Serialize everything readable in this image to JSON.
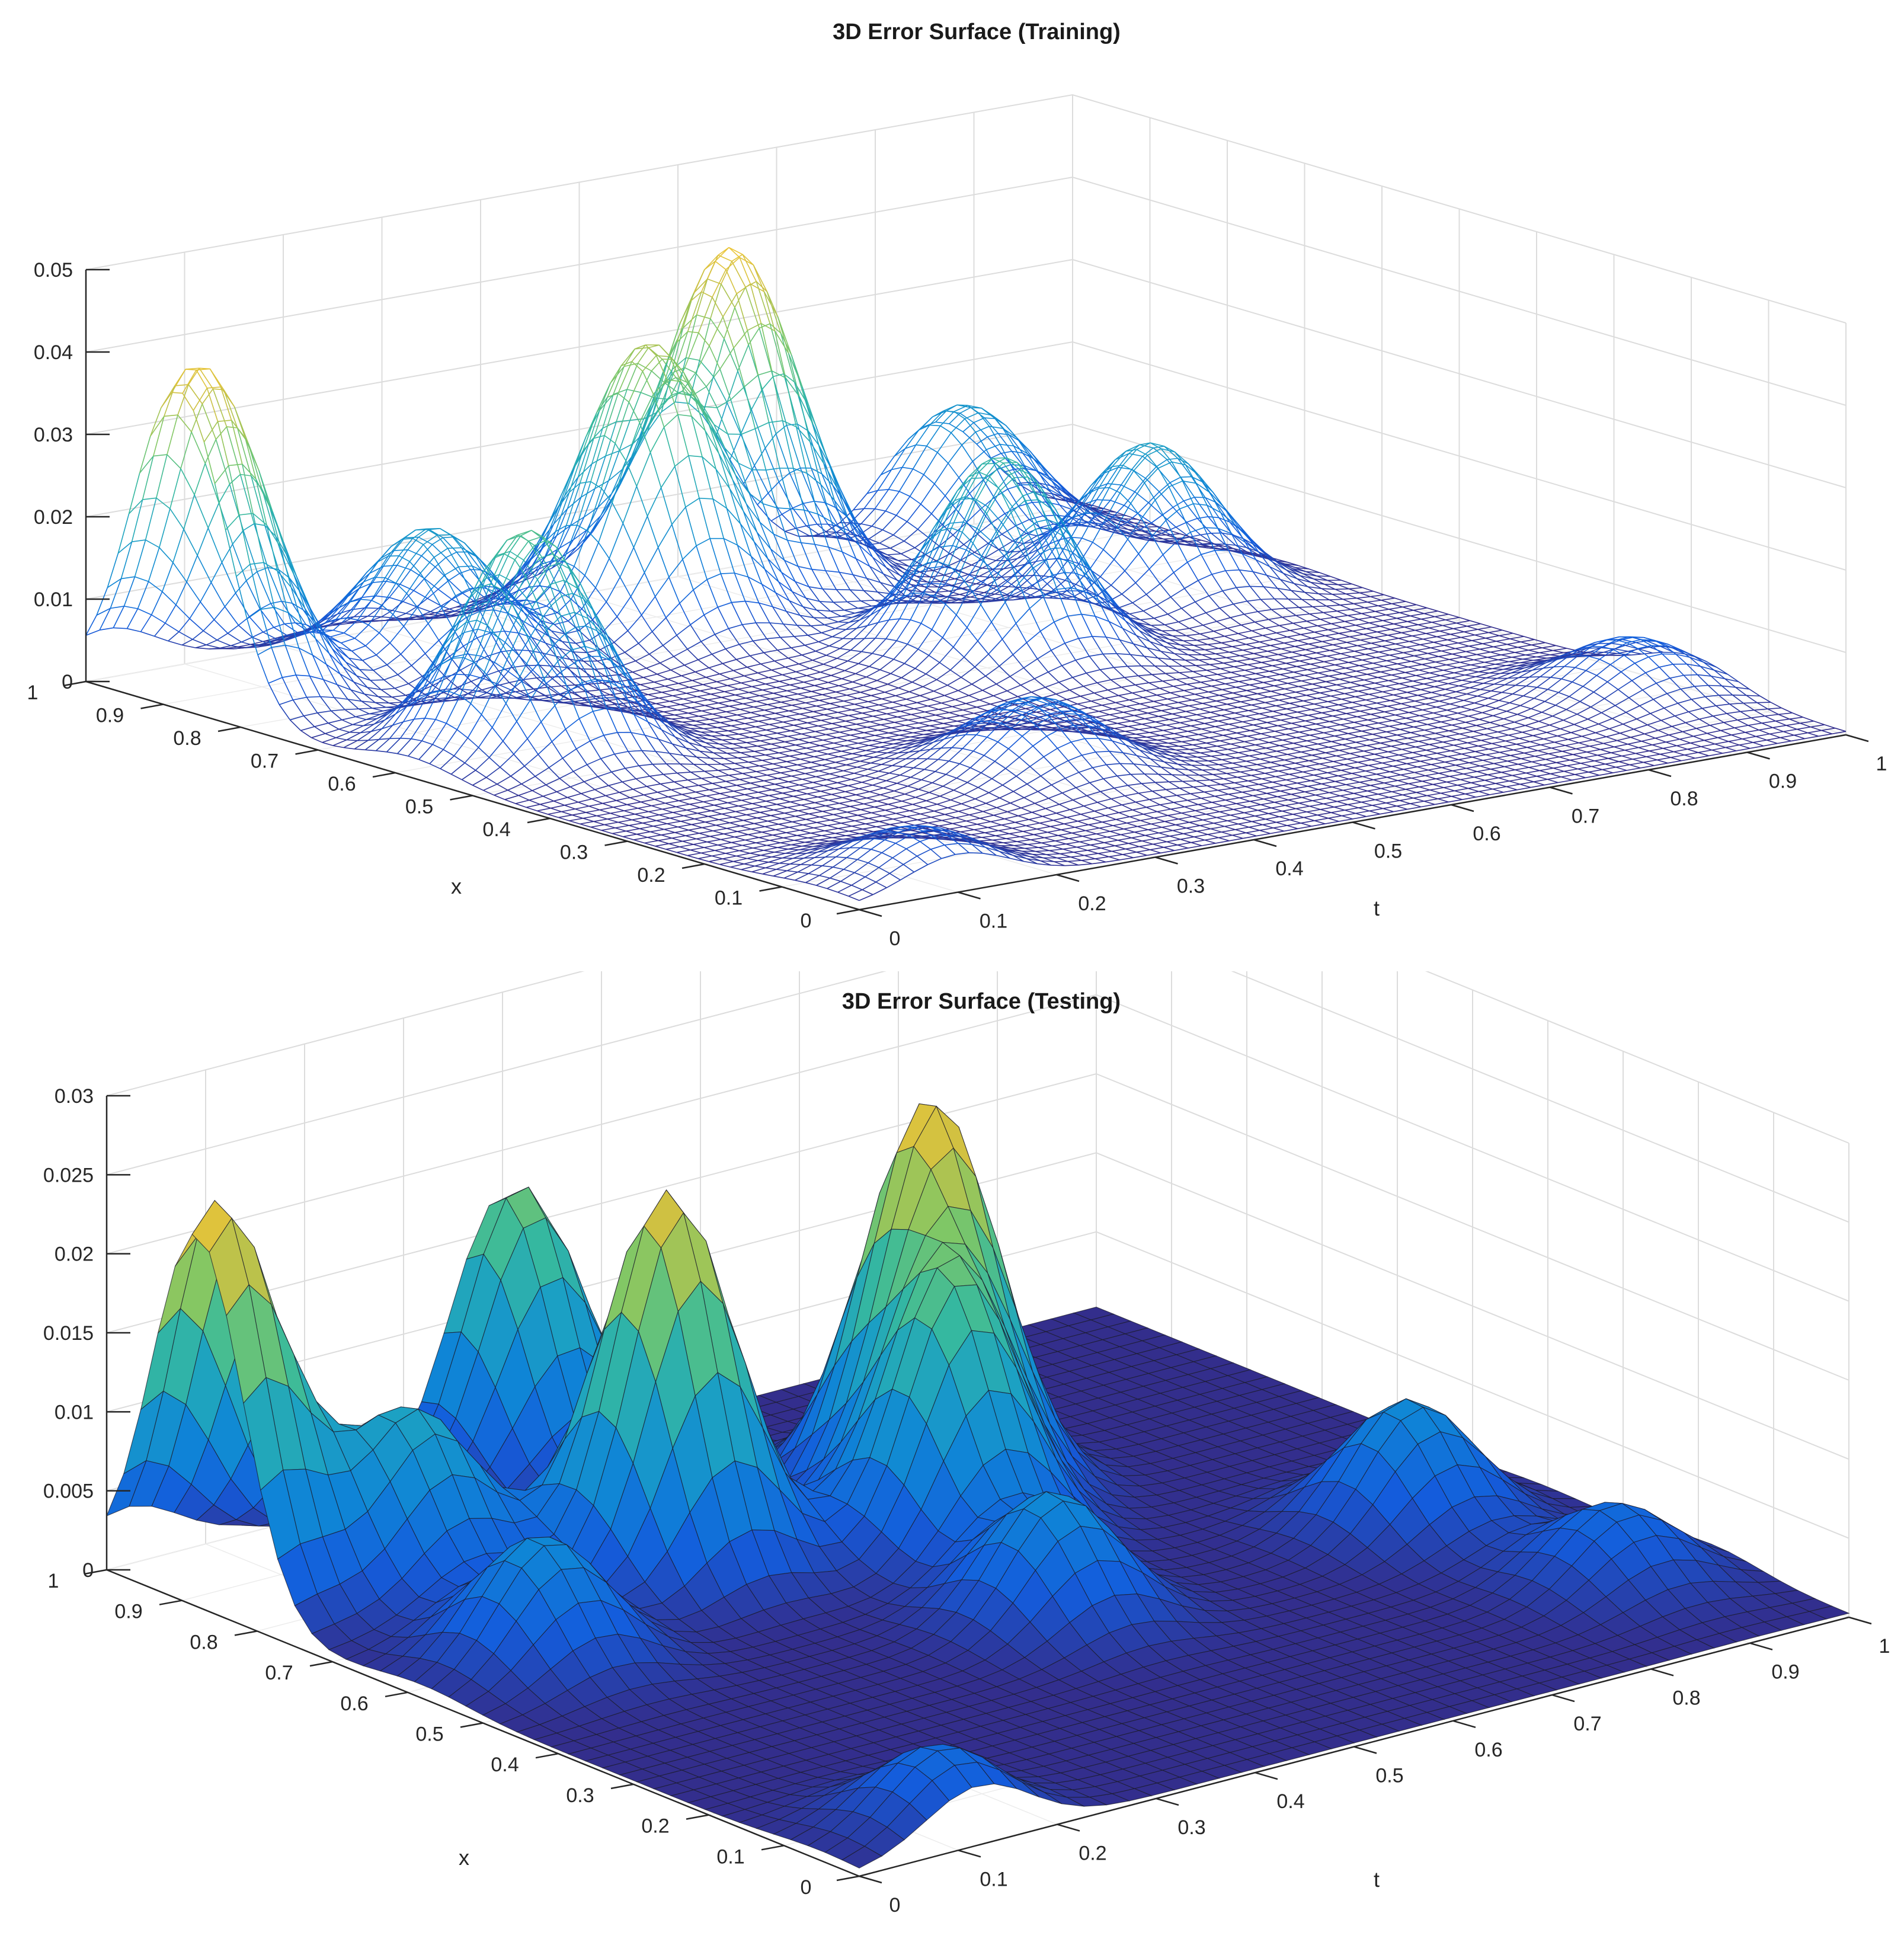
{
  "chart_data": [
    {
      "type": "surface-mesh",
      "title": "3D Error Surface (Training)",
      "xlabel": "x",
      "ylabel": "t",
      "zlabel": "",
      "xlim": [
        0,
        1
      ],
      "ylim": [
        0,
        1
      ],
      "zlim": [
        0,
        0.05
      ],
      "x_ticks": [
        "0",
        "0.1",
        "0.2",
        "0.3",
        "0.4",
        "0.5",
        "0.6",
        "0.7",
        "0.8",
        "0.9",
        "1"
      ],
      "t_ticks": [
        "0",
        "0.1",
        "0.2",
        "0.3",
        "0.4",
        "0.5",
        "0.6",
        "0.7",
        "0.8",
        "0.9",
        "1"
      ],
      "z_ticks": [
        "0",
        "0.01",
        "0.02",
        "0.03",
        "0.04",
        "0.05"
      ],
      "grid": true,
      "colormap": "parula",
      "peaks": [
        {
          "x": 0.88,
          "t": 0.02,
          "z": 0.041
        },
        {
          "x": 0.93,
          "t": 0.6,
          "z": 0.041
        },
        {
          "x": 0.86,
          "t": 0.46,
          "z": 0.034
        },
        {
          "x": 0.58,
          "t": 0.12,
          "z": 0.027
        },
        {
          "x": 0.62,
          "t": 0.63,
          "z": 0.024
        },
        {
          "x": 0.72,
          "t": 0.86,
          "z": 0.018
        },
        {
          "x": 0.86,
          "t": 0.24,
          "z": 0.017
        },
        {
          "x": 0.96,
          "t": 0.86,
          "z": 0.016
        },
        {
          "x": 0.28,
          "t": 0.4,
          "z": 0.009
        },
        {
          "x": 0.2,
          "t": 0.94,
          "z": 0.007
        },
        {
          "x": 0.05,
          "t": 0.1,
          "z": 0.006
        }
      ]
    },
    {
      "type": "surface",
      "title": "3D Error Surface (Testing)",
      "xlabel": "x",
      "ylabel": "t",
      "zlabel": "",
      "xlim": [
        0,
        1
      ],
      "ylim": [
        0,
        1
      ],
      "zlim": [
        0,
        0.03
      ],
      "x_ticks": [
        "0",
        "0.1",
        "0.2",
        "0.3",
        "0.4",
        "0.5",
        "0.6",
        "0.7",
        "0.8",
        "0.9",
        "1"
      ],
      "t_ticks": [
        "0",
        "0.1",
        "0.2",
        "0.3",
        "0.4",
        "0.5",
        "0.6",
        "0.7",
        "0.8",
        "0.9",
        "1"
      ],
      "z_ticks": [
        "0",
        "0.005",
        "0.01",
        "0.015",
        "0.02",
        "0.025",
        "0.03"
      ],
      "grid": true,
      "colormap": "parula",
      "peaks": [
        {
          "x": 0.88,
          "t": 0.02,
          "z": 0.025
        },
        {
          "x": 0.58,
          "t": 0.12,
          "z": 0.008
        },
        {
          "x": 0.7,
          "t": 0.34,
          "z": 0.024
        },
        {
          "x": 0.72,
          "t": 0.62,
          "z": 0.024
        },
        {
          "x": 0.98,
          "t": 0.4,
          "z": 0.018
        },
        {
          "x": 0.6,
          "t": 0.55,
          "z": 0.016
        },
        {
          "x": 0.8,
          "t": 0.16,
          "z": 0.011
        },
        {
          "x": 0.4,
          "t": 0.5,
          "z": 0.008
        },
        {
          "x": 0.4,
          "t": 0.86,
          "z": 0.008
        },
        {
          "x": 0.18,
          "t": 0.9,
          "z": 0.005
        },
        {
          "x": 0.05,
          "t": 0.12,
          "z": 0.005
        }
      ]
    }
  ]
}
